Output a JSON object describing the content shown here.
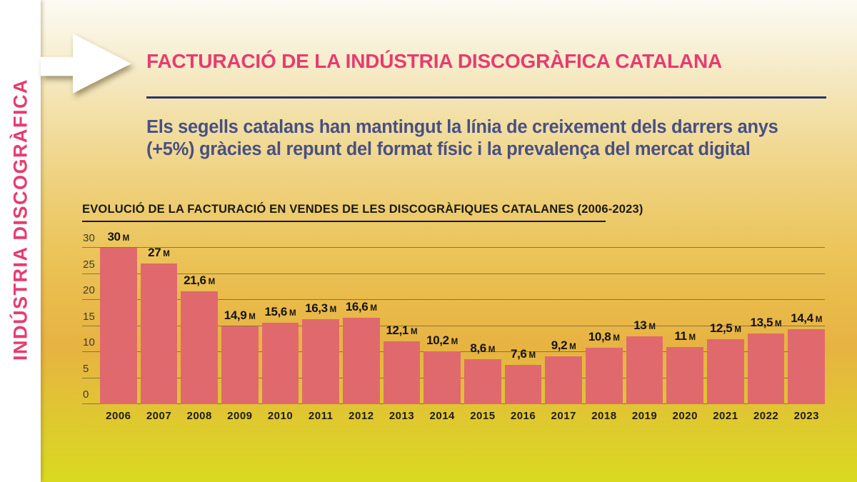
{
  "sidebar": {
    "label": "INDÚSTRIA DISCOGRÀFICA"
  },
  "header": {
    "title": "FACTURACIÓ DE LA INDÚSTRIA DISCOGRÀFICA CATALANA",
    "subtitle_lines": [
      "Els segells catalans han mantingut la línia de creixement dels darrers anys",
      "(+5%) gràcies al repunt del format físic i la prevalença del mercat digital"
    ]
  },
  "chart_data": {
    "type": "bar",
    "title": "EVOLUCIÓ DE LA FACTURACIÓ EN VENDES DE LES DISCOGRÀFIQUES CATALANES (2006-2023)",
    "categories": [
      "2006",
      "2007",
      "2008",
      "2009",
      "2010",
      "2011",
      "2012",
      "2013",
      "2014",
      "2015",
      "2016",
      "2017",
      "2018",
      "2019",
      "2020",
      "2021",
      "2022",
      "2023"
    ],
    "values": [
      30,
      27,
      21.6,
      14.9,
      15.6,
      16.3,
      16.6,
      12.1,
      10.2,
      8.6,
      7.6,
      9.2,
      10.8,
      13,
      11,
      12.5,
      13.5,
      14.4
    ],
    "value_labels": [
      "30",
      "27",
      "21,6",
      "14,9",
      "15,6",
      "16,3",
      "16,6",
      "12,1",
      "10,2",
      "8,6",
      "7,6",
      "9,2",
      "10,8",
      "13",
      "11",
      "12,5",
      "13,5",
      "14,4"
    ],
    "unit": "M",
    "xlabel": "",
    "ylabel": "",
    "yticks": [
      0,
      5,
      10,
      15,
      20,
      25,
      30
    ],
    "ylim": [
      0,
      30
    ],
    "grid": true,
    "legend": false
  },
  "colors": {
    "accent_pink": "#e73c6e",
    "navy": "#27356b",
    "subtitle_blue": "#485083",
    "bar": "#e0696e",
    "gridline": "#6f6340",
    "arrow_white": "#ffffff"
  }
}
